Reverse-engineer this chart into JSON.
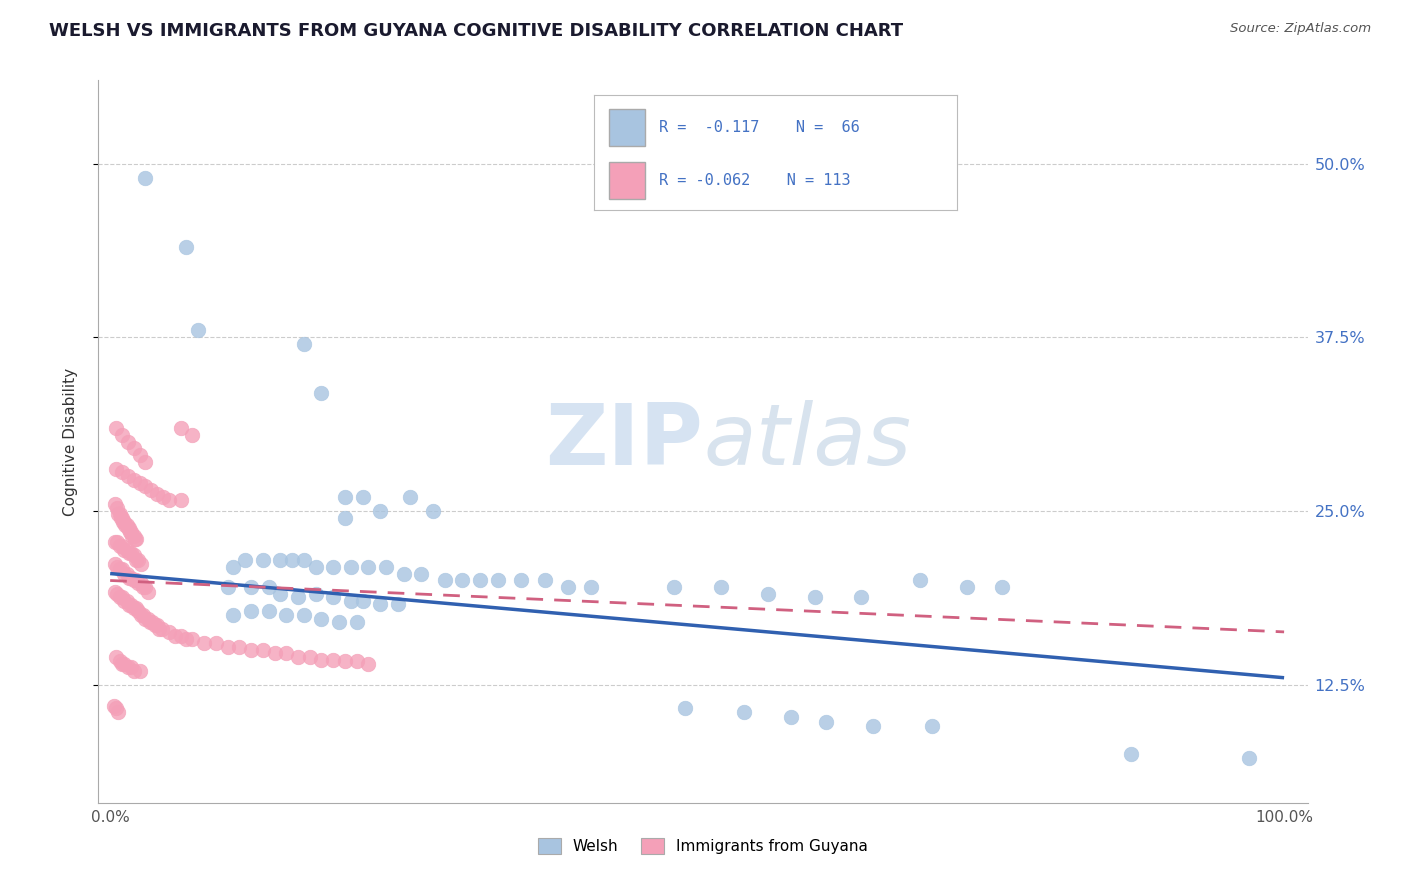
{
  "title": "WELSH VS IMMIGRANTS FROM GUYANA COGNITIVE DISABILITY CORRELATION CHART",
  "source": "Source: ZipAtlas.com",
  "ylabel": "Cognitive Disability",
  "ytick_labels": [
    "12.5%",
    "25.0%",
    "37.5%",
    "50.0%"
  ],
  "ytick_values": [
    0.125,
    0.25,
    0.375,
    0.5
  ],
  "xlim": [
    0.0,
    1.0
  ],
  "ylim": [
    0.04,
    0.56
  ],
  "welsh_color": "#a8c4e0",
  "guyana_color": "#f4a0b8",
  "welsh_line_color": "#3060b0",
  "guyana_line_color": "#d06080",
  "background_color": "#ffffff",
  "watermark_zip": "ZIP",
  "watermark_atlas": "atlas",
  "welsh_points": [
    [
      0.03,
      0.49
    ],
    [
      0.065,
      0.44
    ],
    [
      0.075,
      0.38
    ],
    [
      0.165,
      0.37
    ],
    [
      0.18,
      0.335
    ],
    [
      0.2,
      0.26
    ],
    [
      0.215,
      0.26
    ],
    [
      0.255,
      0.26
    ],
    [
      0.2,
      0.245
    ],
    [
      0.23,
      0.25
    ],
    [
      0.275,
      0.25
    ],
    [
      0.105,
      0.21
    ],
    [
      0.115,
      0.215
    ],
    [
      0.13,
      0.215
    ],
    [
      0.145,
      0.215
    ],
    [
      0.155,
      0.215
    ],
    [
      0.165,
      0.215
    ],
    [
      0.175,
      0.21
    ],
    [
      0.19,
      0.21
    ],
    [
      0.205,
      0.21
    ],
    [
      0.22,
      0.21
    ],
    [
      0.235,
      0.21
    ],
    [
      0.25,
      0.205
    ],
    [
      0.265,
      0.205
    ],
    [
      0.285,
      0.2
    ],
    [
      0.3,
      0.2
    ],
    [
      0.315,
      0.2
    ],
    [
      0.33,
      0.2
    ],
    [
      0.35,
      0.2
    ],
    [
      0.37,
      0.2
    ],
    [
      0.39,
      0.195
    ],
    [
      0.41,
      0.195
    ],
    [
      0.1,
      0.195
    ],
    [
      0.12,
      0.195
    ],
    [
      0.135,
      0.195
    ],
    [
      0.145,
      0.19
    ],
    [
      0.16,
      0.188
    ],
    [
      0.175,
      0.19
    ],
    [
      0.19,
      0.188
    ],
    [
      0.205,
      0.185
    ],
    [
      0.215,
      0.185
    ],
    [
      0.23,
      0.183
    ],
    [
      0.245,
      0.183
    ],
    [
      0.105,
      0.175
    ],
    [
      0.12,
      0.178
    ],
    [
      0.135,
      0.178
    ],
    [
      0.15,
      0.175
    ],
    [
      0.165,
      0.175
    ],
    [
      0.18,
      0.172
    ],
    [
      0.195,
      0.17
    ],
    [
      0.21,
      0.17
    ],
    [
      0.48,
      0.195
    ],
    [
      0.52,
      0.195
    ],
    [
      0.56,
      0.19
    ],
    [
      0.6,
      0.188
    ],
    [
      0.64,
      0.188
    ],
    [
      0.69,
      0.2
    ],
    [
      0.73,
      0.195
    ],
    [
      0.76,
      0.195
    ],
    [
      0.49,
      0.108
    ],
    [
      0.54,
      0.105
    ],
    [
      0.58,
      0.102
    ],
    [
      0.61,
      0.098
    ],
    [
      0.65,
      0.095
    ],
    [
      0.7,
      0.095
    ],
    [
      0.87,
      0.075
    ],
    [
      0.97,
      0.072
    ]
  ],
  "guyana_points": [
    [
      0.004,
      0.255
    ],
    [
      0.006,
      0.252
    ],
    [
      0.007,
      0.248
    ],
    [
      0.008,
      0.248
    ],
    [
      0.009,
      0.245
    ],
    [
      0.01,
      0.245
    ],
    [
      0.011,
      0.242
    ],
    [
      0.012,
      0.242
    ],
    [
      0.013,
      0.24
    ],
    [
      0.014,
      0.24
    ],
    [
      0.015,
      0.238
    ],
    [
      0.016,
      0.238
    ],
    [
      0.017,
      0.235
    ],
    [
      0.018,
      0.235
    ],
    [
      0.019,
      0.232
    ],
    [
      0.02,
      0.232
    ],
    [
      0.021,
      0.23
    ],
    [
      0.022,
      0.23
    ],
    [
      0.004,
      0.228
    ],
    [
      0.006,
      0.228
    ],
    [
      0.008,
      0.225
    ],
    [
      0.01,
      0.225
    ],
    [
      0.012,
      0.222
    ],
    [
      0.014,
      0.222
    ],
    [
      0.016,
      0.22
    ],
    [
      0.018,
      0.22
    ],
    [
      0.02,
      0.218
    ],
    [
      0.022,
      0.215
    ],
    [
      0.024,
      0.215
    ],
    [
      0.026,
      0.212
    ],
    [
      0.004,
      0.212
    ],
    [
      0.006,
      0.21
    ],
    [
      0.008,
      0.208
    ],
    [
      0.01,
      0.208
    ],
    [
      0.012,
      0.205
    ],
    [
      0.014,
      0.205
    ],
    [
      0.016,
      0.202
    ],
    [
      0.018,
      0.202
    ],
    [
      0.02,
      0.2
    ],
    [
      0.022,
      0.2
    ],
    [
      0.024,
      0.198
    ],
    [
      0.026,
      0.198
    ],
    [
      0.028,
      0.195
    ],
    [
      0.03,
      0.195
    ],
    [
      0.032,
      0.192
    ],
    [
      0.004,
      0.192
    ],
    [
      0.006,
      0.19
    ],
    [
      0.008,
      0.188
    ],
    [
      0.01,
      0.188
    ],
    [
      0.012,
      0.185
    ],
    [
      0.014,
      0.185
    ],
    [
      0.016,
      0.182
    ],
    [
      0.018,
      0.182
    ],
    [
      0.02,
      0.18
    ],
    [
      0.022,
      0.18
    ],
    [
      0.024,
      0.178
    ],
    [
      0.026,
      0.175
    ],
    [
      0.028,
      0.175
    ],
    [
      0.03,
      0.172
    ],
    [
      0.032,
      0.172
    ],
    [
      0.034,
      0.17
    ],
    [
      0.036,
      0.17
    ],
    [
      0.038,
      0.168
    ],
    [
      0.04,
      0.168
    ],
    [
      0.042,
      0.165
    ],
    [
      0.044,
      0.165
    ],
    [
      0.05,
      0.163
    ],
    [
      0.055,
      0.16
    ],
    [
      0.06,
      0.16
    ],
    [
      0.065,
      0.158
    ],
    [
      0.07,
      0.158
    ],
    [
      0.08,
      0.155
    ],
    [
      0.09,
      0.155
    ],
    [
      0.1,
      0.152
    ],
    [
      0.11,
      0.152
    ],
    [
      0.12,
      0.15
    ],
    [
      0.13,
      0.15
    ],
    [
      0.14,
      0.148
    ],
    [
      0.005,
      0.28
    ],
    [
      0.01,
      0.278
    ],
    [
      0.015,
      0.275
    ],
    [
      0.02,
      0.272
    ],
    [
      0.025,
      0.27
    ],
    [
      0.03,
      0.268
    ],
    [
      0.035,
      0.265
    ],
    [
      0.04,
      0.262
    ],
    [
      0.045,
      0.26
    ],
    [
      0.05,
      0.258
    ],
    [
      0.06,
      0.258
    ],
    [
      0.005,
      0.145
    ],
    [
      0.008,
      0.142
    ],
    [
      0.01,
      0.14
    ],
    [
      0.012,
      0.14
    ],
    [
      0.015,
      0.138
    ],
    [
      0.018,
      0.138
    ],
    [
      0.02,
      0.135
    ],
    [
      0.025,
      0.135
    ],
    [
      0.005,
      0.31
    ],
    [
      0.01,
      0.305
    ],
    [
      0.015,
      0.3
    ],
    [
      0.02,
      0.295
    ],
    [
      0.025,
      0.29
    ],
    [
      0.03,
      0.285
    ],
    [
      0.06,
      0.31
    ],
    [
      0.07,
      0.305
    ],
    [
      0.003,
      0.11
    ],
    [
      0.005,
      0.108
    ],
    [
      0.007,
      0.105
    ],
    [
      0.15,
      0.148
    ],
    [
      0.16,
      0.145
    ],
    [
      0.17,
      0.145
    ],
    [
      0.18,
      0.143
    ],
    [
      0.19,
      0.143
    ],
    [
      0.2,
      0.142
    ],
    [
      0.21,
      0.142
    ],
    [
      0.22,
      0.14
    ]
  ]
}
